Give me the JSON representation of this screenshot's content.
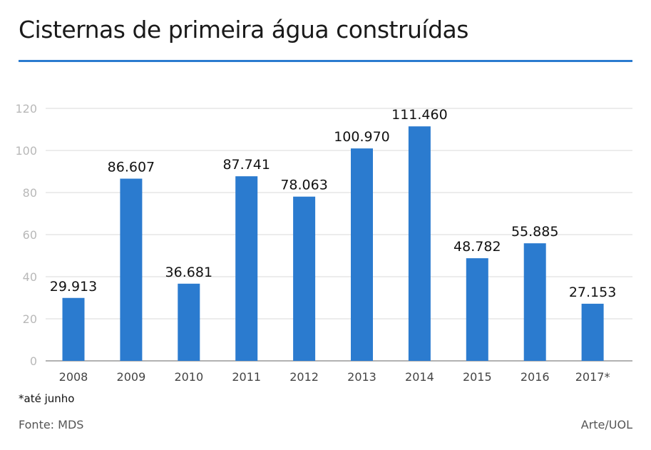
{
  "chart_data": {
    "type": "bar",
    "title": "Cisternas de primeira água construídas",
    "xlabel": "",
    "ylabel": "",
    "categories": [
      "2008",
      "2009",
      "2010",
      "2011",
      "2012",
      "2013",
      "2014",
      "2015",
      "2016",
      "2017*"
    ],
    "values": [
      29.913,
      86.607,
      36.681,
      87.741,
      78.063,
      100.97,
      111.46,
      48.782,
      55.885,
      27.153
    ],
    "value_labels": [
      "29.913",
      "86.607",
      "36.681",
      "87.741",
      "78.063",
      "100.970",
      "111.460",
      "48.782",
      "55.885",
      "27.153"
    ],
    "ylim": [
      0,
      120
    ],
    "yticks": [
      "0",
      "20",
      "40",
      "60",
      "80",
      "100",
      "120"
    ],
    "grid": true,
    "bar_color": "#2b7bcf",
    "note": "*até junho",
    "source": "Fonte: MDS",
    "credit": "Arte/UOL"
  }
}
